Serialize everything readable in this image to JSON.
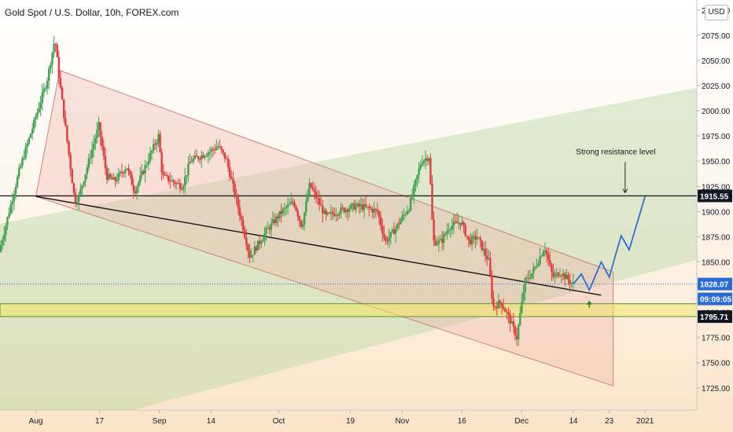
{
  "title": "Gold Spot / U.S. Dollar, 10h, FOREX.com",
  "currency": "USD",
  "colors": {
    "up": "#26a69a",
    "up_fill": "#3fa34d",
    "down": "#e03c3c",
    "forecast": "#2f6fd6",
    "channel": "#c9857a",
    "trendline": "#111111",
    "support_zone": "#f2e46a",
    "support_zone_border": "#4a9a2a",
    "resistance_line": "#111111",
    "last_price": "#2a6cd6"
  },
  "chart_data": {
    "type": "candlestick",
    "x_ticks": [
      {
        "label": "Aug",
        "date": "2020-08-01"
      },
      {
        "label": "17",
        "date": "2020-08-17"
      },
      {
        "label": "Sep",
        "date": "2020-09-01"
      },
      {
        "label": "14",
        "date": "2020-09-14"
      },
      {
        "label": "Oct",
        "date": "2020-10-01"
      },
      {
        "label": "19",
        "date": "2020-10-19"
      },
      {
        "label": "Nov",
        "date": "2020-11-01"
      },
      {
        "label": "16",
        "date": "2020-11-16"
      },
      {
        "label": "Dec",
        "date": "2020-12-01"
      },
      {
        "label": "14",
        "date": "2020-12-14"
      },
      {
        "label": "23",
        "date": "2020-12-23"
      },
      {
        "label": "2021",
        "date": "2021-01-01"
      }
    ],
    "y_ticks": [
      1725,
      1750,
      1775,
      1800,
      1825,
      1850,
      1875,
      1900,
      1925,
      1950,
      1975,
      2000,
      2025,
      2050,
      2075,
      2100
    ],
    "y_tick_labels": [
      "1725.00",
      "1750.00",
      "1775.00",
      "1800.00",
      "1825.00",
      "1850.00",
      "1875.00",
      "1900.00",
      "1925.00",
      "1950.00",
      "1975.00",
      "2000.00",
      "2025.00",
      "2050.00",
      "2075.00",
      "2100.00"
    ],
    "ylim": [
      1703,
      2110
    ],
    "xlim": [
      "2020-07-23",
      "2021-01-14"
    ],
    "price_labels": {
      "resistance": "1915.55",
      "last": "1828.07",
      "countdown": "09:09:05",
      "support": "1795.71"
    },
    "levels": {
      "resistance": 1915.55,
      "last": 1828.07,
      "support_zone": [
        1795.71,
        1808.5
      ]
    },
    "annotation": {
      "text": "Strong resistance level",
      "date": "2020-12-27",
      "value": 1960
    },
    "support_arrow": {
      "date": "2020-12-18",
      "value": 1803
    },
    "descending_channel": {
      "upper": [
        [
          "2020-08-07",
          2040
        ],
        [
          "2020-12-24",
          1840
        ]
      ],
      "lower": [
        [
          "2020-08-01",
          1915
        ],
        [
          "2020-12-24",
          1727
        ]
      ]
    },
    "trendline": [
      [
        "2020-08-01",
        1915
      ],
      [
        "2020-12-21",
        1817
      ]
    ],
    "rising_band": {
      "upper": [
        [
          "2020-07-23",
          1888
        ],
        [
          "2021-01-14",
          2023
        ]
      ],
      "lower": [
        [
          "2020-07-23",
          1668
        ],
        [
          "2021-01-14",
          1852
        ]
      ]
    },
    "forecast_path": [
      [
        "2020-12-14",
        1828
      ],
      [
        "2020-12-16",
        1838
      ],
      [
        "2020-12-18",
        1822
      ],
      [
        "2020-12-21",
        1850
      ],
      [
        "2020-12-23",
        1835
      ],
      [
        "2020-12-26",
        1876
      ],
      [
        "2020-12-28",
        1862
      ],
      [
        "2021-01-01",
        1915
      ]
    ],
    "price_path": [
      [
        "2020-07-23",
        1860
      ],
      [
        "2020-07-28",
        1940
      ],
      [
        "2020-08-04",
        2030
      ],
      [
        "2020-08-06",
        2072
      ],
      [
        "2020-08-07",
        2035
      ],
      [
        "2020-08-11",
        1910
      ],
      [
        "2020-08-12",
        1915
      ],
      [
        "2020-08-17",
        1985
      ],
      [
        "2020-08-19",
        1935
      ],
      [
        "2020-08-21",
        1930
      ],
      [
        "2020-08-24",
        1945
      ],
      [
        "2020-08-26",
        1920
      ],
      [
        "2020-09-01",
        1975
      ],
      [
        "2020-09-02",
        1935
      ],
      [
        "2020-09-07",
        1925
      ],
      [
        "2020-09-09",
        1950
      ],
      [
        "2020-09-14",
        1960
      ],
      [
        "2020-09-16",
        1965
      ],
      [
        "2020-09-18",
        1952
      ],
      [
        "2020-09-21",
        1905
      ],
      [
        "2020-09-24",
        1855
      ],
      [
        "2020-09-28",
        1880
      ],
      [
        "2020-10-02",
        1900
      ],
      [
        "2020-10-05",
        1910
      ],
      [
        "2020-10-07",
        1885
      ],
      [
        "2020-10-09",
        1927
      ],
      [
        "2020-10-13",
        1895
      ],
      [
        "2020-10-16",
        1900
      ],
      [
        "2020-10-20",
        1905
      ],
      [
        "2020-10-22",
        1905
      ],
      [
        "2020-10-26",
        1900
      ],
      [
        "2020-10-28",
        1870
      ],
      [
        "2020-10-30",
        1880
      ],
      [
        "2020-11-03",
        1905
      ],
      [
        "2020-11-06",
        1950
      ],
      [
        "2020-11-08",
        1955
      ],
      [
        "2020-11-09",
        1870
      ],
      [
        "2020-11-11",
        1870
      ],
      [
        "2020-11-13",
        1885
      ],
      [
        "2020-11-16",
        1890
      ],
      [
        "2020-11-18",
        1870
      ],
      [
        "2020-11-20",
        1875
      ],
      [
        "2020-11-23",
        1850
      ],
      [
        "2020-11-24",
        1805
      ],
      [
        "2020-11-26",
        1810
      ],
      [
        "2020-11-28",
        1795
      ],
      [
        "2020-11-30",
        1775
      ],
      [
        "2020-12-02",
        1830
      ],
      [
        "2020-12-04",
        1840
      ],
      [
        "2020-12-07",
        1865
      ],
      [
        "2020-12-09",
        1835
      ],
      [
        "2020-12-11",
        1840
      ],
      [
        "2020-12-14",
        1828
      ]
    ]
  }
}
